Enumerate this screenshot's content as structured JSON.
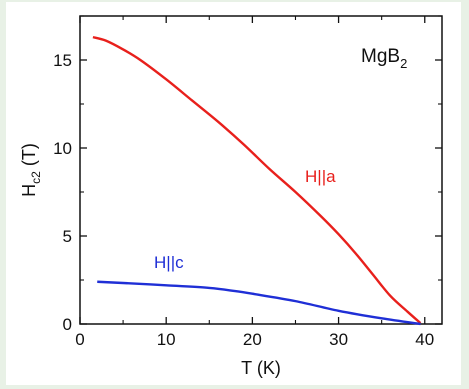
{
  "chart_data": {
    "type": "line",
    "title": "",
    "xlabel": "T (K)",
    "ylabel_main": "H",
    "ylabel_sub": "c2",
    "ylabel_unit": " (T)",
    "xlim": [
      0,
      42
    ],
    "ylim": [
      0,
      17.5
    ],
    "x_ticks": [
      0,
      10,
      20,
      30,
      40
    ],
    "y_ticks": [
      0,
      5,
      10,
      15
    ],
    "grid": false,
    "legend": "none",
    "annotation": {
      "main": "MgB",
      "sub": "2"
    },
    "series": [
      {
        "label": "H||a",
        "color": "#e8201c",
        "x": [
          1.5,
          3,
          5,
          7,
          10,
          13,
          16,
          19,
          22,
          25,
          28,
          30,
          32,
          34,
          36,
          38,
          39.5
        ],
        "y": [
          16.3,
          16.1,
          15.6,
          15.0,
          13.9,
          12.7,
          11.5,
          10.2,
          8.8,
          7.5,
          6.1,
          5.1,
          4.0,
          2.8,
          1.6,
          0.7,
          0.05
        ]
      },
      {
        "label": "H||c",
        "color": "#1f2fd6",
        "x": [
          2,
          5,
          10,
          15,
          18,
          20,
          25,
          30,
          35,
          39.5
        ],
        "y": [
          2.4,
          2.33,
          2.2,
          2.05,
          1.87,
          1.72,
          1.3,
          0.75,
          0.32,
          0.0
        ]
      }
    ]
  }
}
